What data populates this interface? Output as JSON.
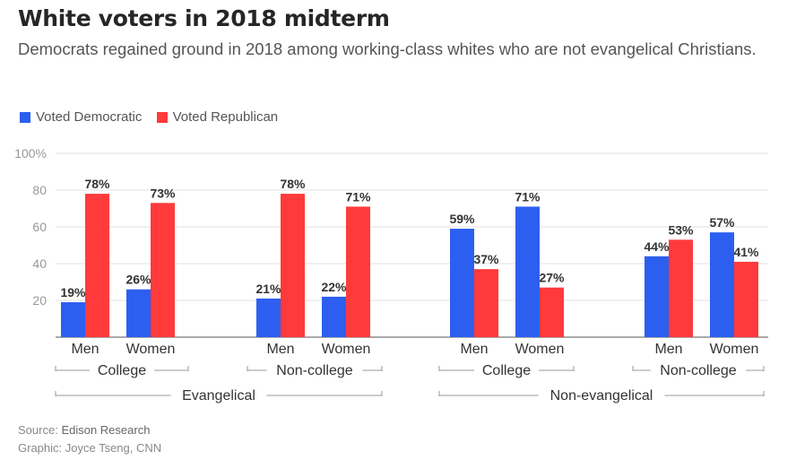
{
  "title": "White voters in 2018 midterm",
  "subtitle": "Democrats regained ground in 2018 among working-class whites who are not evangelical Christians.",
  "legend": [
    {
      "label": "Voted Democratic",
      "color": "#2c5ff0"
    },
    {
      "label": "Voted Republican",
      "color": "#ff3a3a"
    }
  ],
  "source": {
    "label": "Source:",
    "name": "Edison Research"
  },
  "credit": "Graphic: Joyce Tseng, CNN",
  "chart_data": {
    "type": "bar",
    "categories": [
      "Men",
      "Women",
      "Men",
      "Women",
      "Men",
      "Women",
      "Men",
      "Women"
    ],
    "series": [
      {
        "name": "Voted Democratic",
        "values": [
          19,
          26,
          21,
          22,
          59,
          71,
          44,
          57
        ],
        "color": "#2c5ff0"
      },
      {
        "name": "Voted Republican",
        "values": [
          78,
          73,
          78,
          71,
          37,
          27,
          53,
          41
        ],
        "color": "#ff3a3a"
      }
    ],
    "data_labels": {
      "Voted Democratic": [
        "19%",
        "26%",
        "21%",
        "22%",
        "59%",
        "71%",
        "44%",
        "57%"
      ],
      "Voted Republican": [
        "78%",
        "73%",
        "78%",
        "71%",
        "37%",
        "27%",
        "53%",
        "41%"
      ]
    },
    "education_groups": [
      "College",
      "Non-college",
      "College",
      "Non-college"
    ],
    "religion_groups": [
      "Evangelical",
      "Non-evangelical"
    ],
    "yticks": [
      "20",
      "40",
      "60",
      "80",
      "100%"
    ],
    "ylim": [
      0,
      100
    ],
    "grid": true,
    "legend_position": "top-left"
  }
}
